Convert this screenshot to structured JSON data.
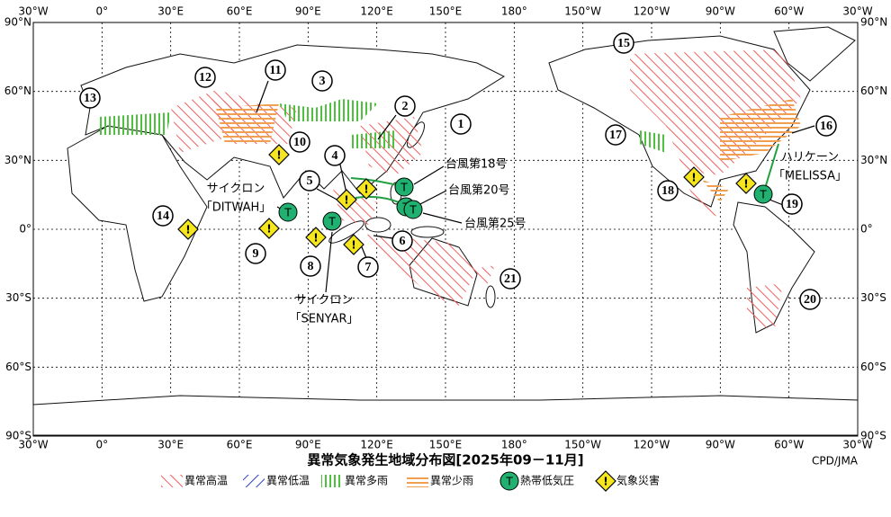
{
  "title": "異常気象発生地域分布図[2025年09－11月]",
  "credit": "CPD/JMA",
  "longitude_labels": [
    "30°W",
    "0°",
    "30°E",
    "60°E",
    "90°E",
    "120°E",
    "150°E",
    "180°",
    "150°W",
    "120°W",
    "90°W",
    "60°W",
    "30°W"
  ],
  "latitude_labels": [
    "90°N",
    "60°N",
    "30°N",
    "0°",
    "30°S",
    "60°S",
    "90°S"
  ],
  "region_numbers": [
    "1",
    "2",
    "3",
    "4",
    "5",
    "6",
    "7",
    "8",
    "9",
    "10",
    "11",
    "12",
    "13",
    "14",
    "15",
    "16",
    "17",
    "18",
    "19",
    "20",
    "21"
  ],
  "annotations": [
    {
      "lines": [
        "台風第18号"
      ]
    },
    {
      "lines": [
        "台風第20号"
      ]
    },
    {
      "lines": [
        "台風第25号"
      ]
    },
    {
      "lines": [
        "サイクロン",
        "「DITWAH」"
      ]
    },
    {
      "lines": [
        "サイクロン",
        "「SENYAR」"
      ]
    },
    {
      "lines": [
        "ハリケーン",
        "「MELISSA」"
      ]
    }
  ],
  "symbols": {
    "cyclone": "T",
    "disaster": "!"
  },
  "legend": [
    "異常高温",
    "異常低温",
    "異常多雨",
    "異常少雨",
    "熱帯低気圧",
    "気象災害"
  ]
}
